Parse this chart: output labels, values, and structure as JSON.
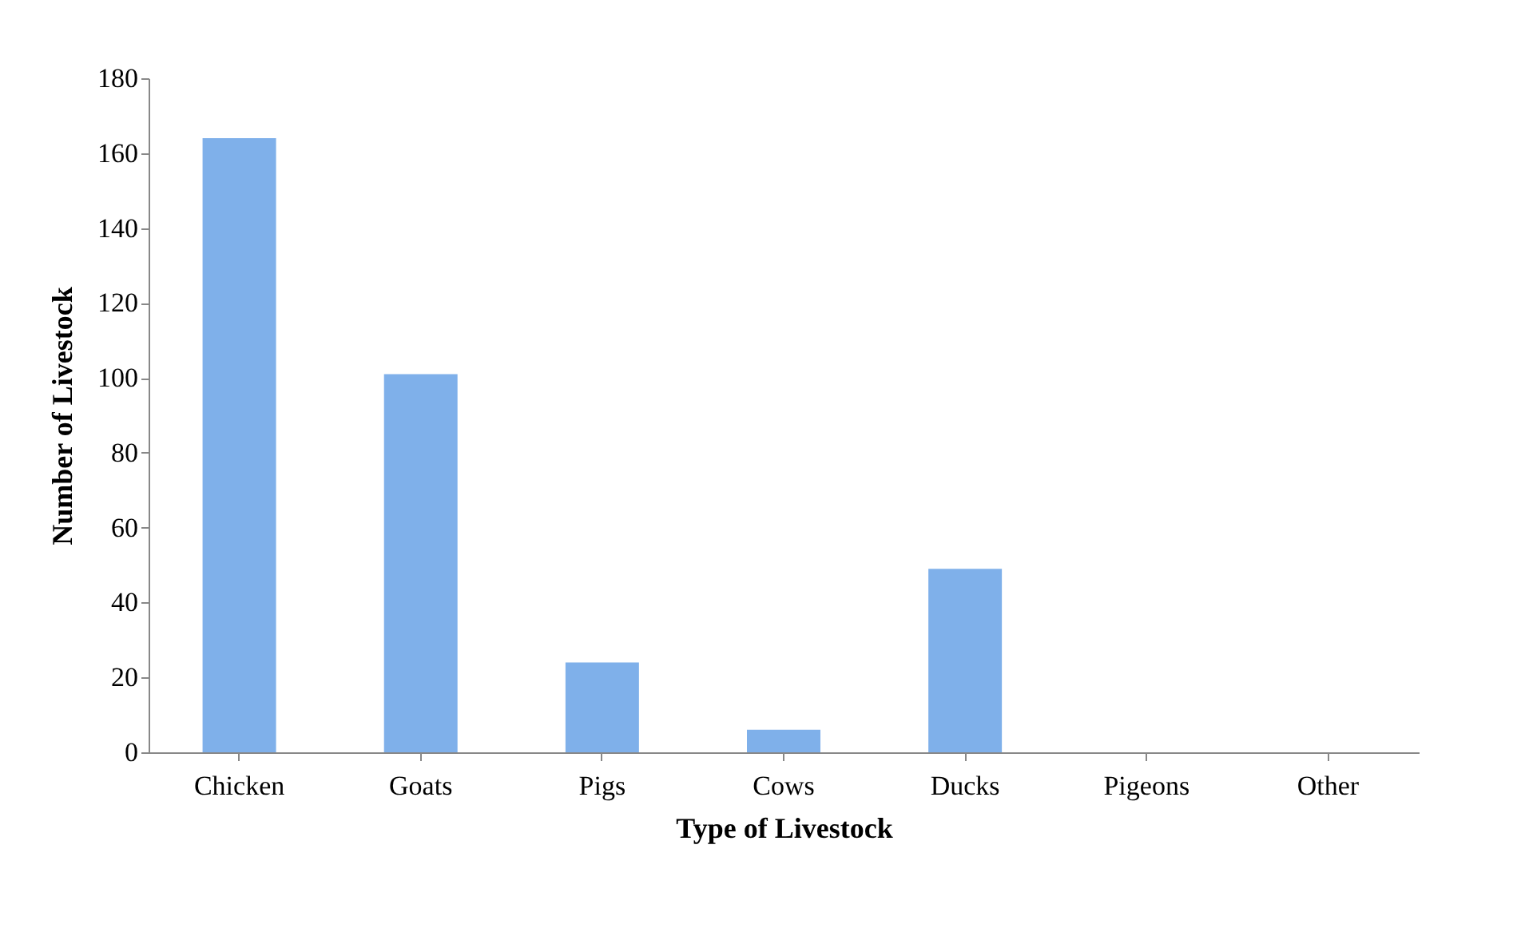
{
  "chart_data": {
    "type": "bar",
    "xlabel": "Type of Livestock",
    "ylabel": "Number of Livestock",
    "categories": [
      "Chicken",
      "Goats",
      "Pigs",
      "Cows",
      "Ducks",
      "Pigeons",
      "Other"
    ],
    "values": [
      164,
      101,
      24,
      6,
      49,
      0,
      0
    ],
    "color": "#7fb0ea",
    "ylim": [
      0,
      180
    ],
    "yticks": [
      0,
      20,
      40,
      60,
      80,
      100,
      120,
      140,
      160,
      180
    ],
    "grid": false
  }
}
